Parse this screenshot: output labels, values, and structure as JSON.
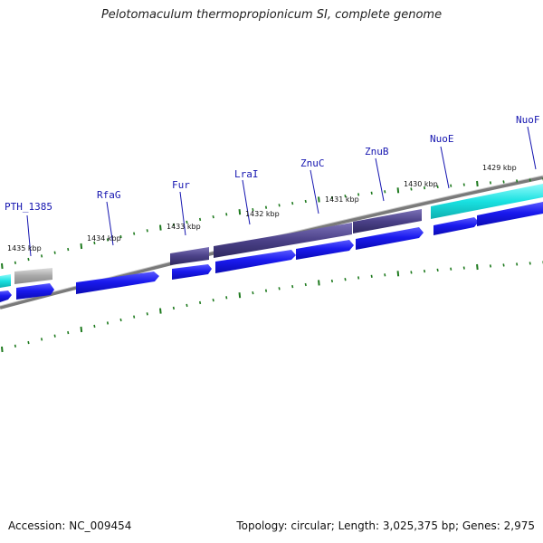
{
  "header": {
    "title": "Pelotomaculum thermopropionicum SI, complete genome"
  },
  "footer": {
    "accession": "Accession: NC_009454",
    "topology": "Topology: circular; Length: 3,025,375 bp; Genes: 2,975"
  },
  "colors": {
    "cds_forward": "#1a1aee",
    "cds_reverse": "#0000c8",
    "highlight_dark": "#4b4188",
    "highlight_cyan": "#19e1e1",
    "pseudo_gray": "#a7a7a7",
    "backbone": "#7a7a7a",
    "tick": "#1e7a1e",
    "gene_label": "#1515b0"
  },
  "position_markers": [
    "1435 kbp",
    "1434 kbp",
    "1433 kbp",
    "1432 kbp",
    "1431 kbp",
    "1430 kbp",
    "1429 kbp"
  ],
  "gene_labels": [
    "PTH_1385",
    "RfaG",
    "Fur",
    "LraI",
    "ZnuC",
    "ZnuB",
    "NuoE",
    "NuoF"
  ]
}
